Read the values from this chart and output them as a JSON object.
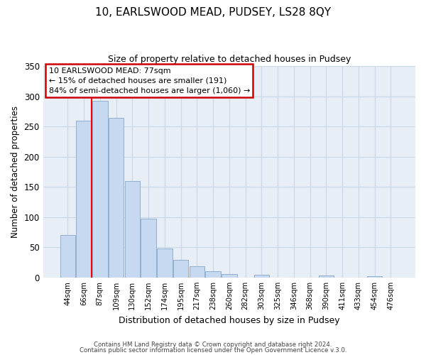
{
  "title": "10, EARLSWOOD MEAD, PUDSEY, LS28 8QY",
  "subtitle": "Size of property relative to detached houses in Pudsey",
  "xlabel": "Distribution of detached houses by size in Pudsey",
  "ylabel": "Number of detached properties",
  "bar_labels": [
    "44sqm",
    "66sqm",
    "87sqm",
    "109sqm",
    "130sqm",
    "152sqm",
    "174sqm",
    "195sqm",
    "217sqm",
    "238sqm",
    "260sqm",
    "282sqm",
    "303sqm",
    "325sqm",
    "346sqm",
    "368sqm",
    "390sqm",
    "411sqm",
    "433sqm",
    "454sqm",
    "476sqm"
  ],
  "bar_values": [
    70,
    260,
    293,
    264,
    160,
    97,
    48,
    29,
    19,
    10,
    6,
    0,
    5,
    0,
    0,
    0,
    3,
    0,
    0,
    2,
    0
  ],
  "bar_color": "#c6d9f0",
  "bar_edge_color": "#92afd0",
  "ylim": [
    0,
    350
  ],
  "yticks": [
    0,
    50,
    100,
    150,
    200,
    250,
    300,
    350
  ],
  "property_line_x": 1.5,
  "annotation_line1": "10 EARLSWOOD MEAD: 77sqm",
  "annotation_line2": "← 15% of detached houses are smaller (191)",
  "annotation_line3": "84% of semi-detached houses are larger (1,060) →",
  "footer1": "Contains HM Land Registry data © Crown copyright and database right 2024.",
  "footer2": "Contains public sector information licensed under the Open Government Licence v.3.0.",
  "grid_color": "#c8d8e8",
  "background_color": "#e8eef5"
}
